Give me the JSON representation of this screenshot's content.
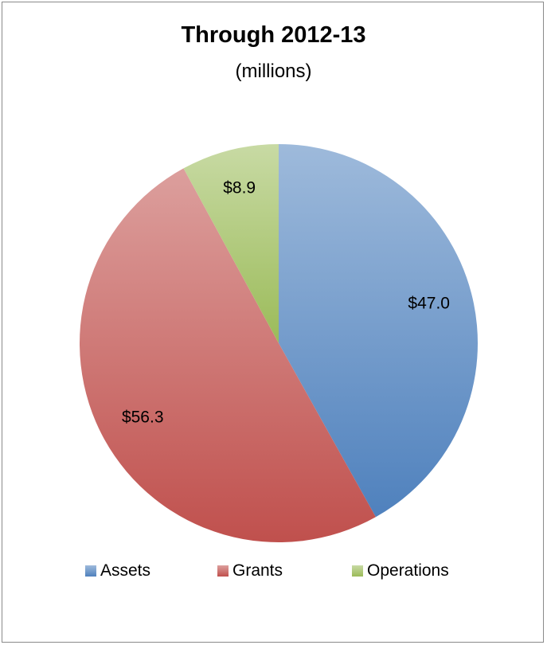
{
  "chart_data": {
    "type": "pie",
    "title": "Through 2012-13",
    "subtitle": "(millions)",
    "categories": [
      "Assets",
      "Grants",
      "Operations"
    ],
    "values": [
      47.0,
      56.3,
      8.9
    ],
    "data_labels": [
      "$47.0",
      "$56.3",
      "$8.9"
    ],
    "colors": [
      "#4F81BD",
      "#C0504D",
      "#9BBB59"
    ],
    "legend_position": "bottom"
  }
}
